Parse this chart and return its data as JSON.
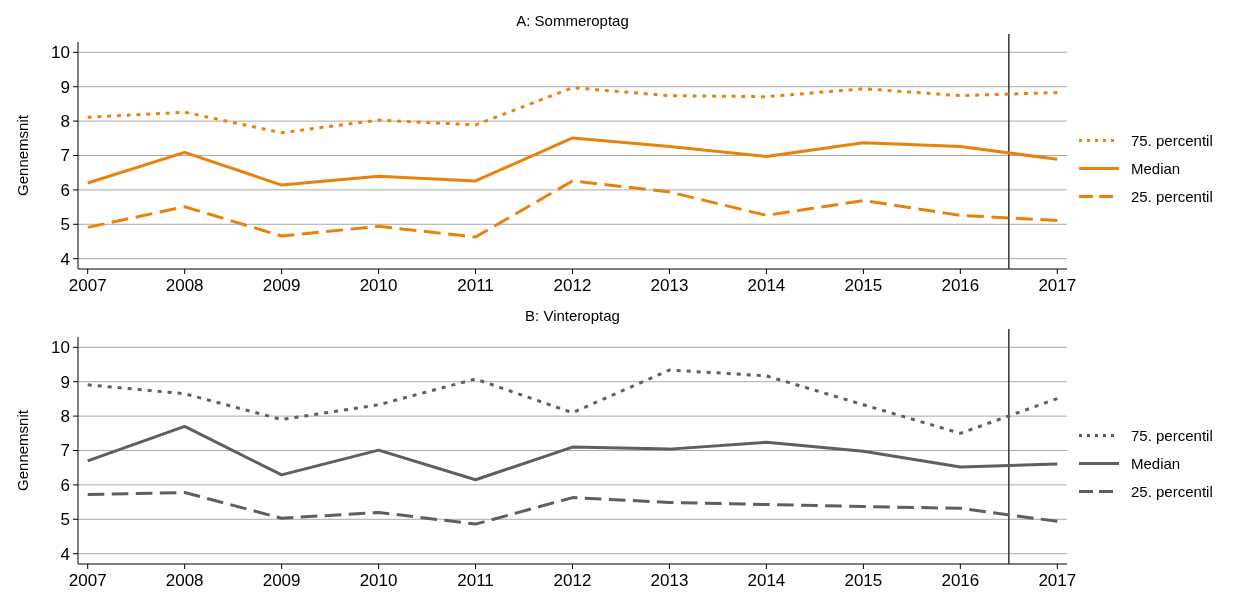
{
  "chart_data": [
    {
      "type": "line",
      "title": "A: Sommeroptag",
      "ylabel": "Gennemsnit",
      "x": [
        2007,
        2008,
        2009,
        2010,
        2011,
        2012,
        2013,
        2014,
        2015,
        2016,
        2017
      ],
      "xlim": [
        2006.9,
        2017.1
      ],
      "xticks": [
        2007,
        2008,
        2009,
        2010,
        2011,
        2012,
        2013,
        2014,
        2015,
        2016,
        2017
      ],
      "ylim": [
        3.7,
        10.3
      ],
      "yticks": [
        4,
        5,
        6,
        7,
        8,
        9,
        10
      ],
      "grid": "y",
      "legend": "right",
      "series": [
        {
          "name": "75. percentil",
          "color": "#e8820c",
          "line_style": "dotted",
          "values": [
            8.11,
            8.26,
            7.66,
            8.03,
            7.89,
            8.97,
            8.74,
            8.71,
            8.94,
            8.74,
            8.83
          ]
        },
        {
          "name": "Median",
          "color": "#e8820c",
          "line_style": "solid",
          "values": [
            6.2,
            7.09,
            6.14,
            6.4,
            6.26,
            7.51,
            7.26,
            6.97,
            7.37,
            7.26,
            6.89
          ]
        },
        {
          "name": "25. percentil",
          "color": "#e8820c",
          "line_style": "dashed",
          "values": [
            4.91,
            5.51,
            4.66,
            4.94,
            4.63,
            6.26,
            5.94,
            5.26,
            5.69,
            5.26,
            5.11
          ]
        }
      ],
      "ref_lines": [
        {
          "axis": "x",
          "value": 2016.5,
          "color": "#333333"
        }
      ]
    },
    {
      "type": "line",
      "title": "B: Vinteroptag",
      "ylabel": "Gennemsnit",
      "x": [
        2007,
        2008,
        2009,
        2010,
        2011,
        2012,
        2013,
        2014,
        2015,
        2016,
        2017
      ],
      "xlim": [
        2006.9,
        2017.1
      ],
      "xticks": [
        2007,
        2008,
        2009,
        2010,
        2011,
        2012,
        2013,
        2014,
        2015,
        2016,
        2017
      ],
      "ylim": [
        3.7,
        10.3
      ],
      "yticks": [
        4,
        5,
        6,
        7,
        8,
        9,
        10
      ],
      "grid": "y",
      "legend": "right",
      "series": [
        {
          "name": "75. percentil",
          "color": "#5f5f5f",
          "line_style": "dotted",
          "values": [
            8.91,
            8.65,
            7.9,
            8.33,
            9.08,
            8.1,
            9.34,
            9.17,
            8.33,
            7.5,
            8.51
          ]
        },
        {
          "name": "Median",
          "color": "#5f5f5f",
          "line_style": "solid",
          "values": [
            6.7,
            7.7,
            6.29,
            7.01,
            6.15,
            7.1,
            7.04,
            7.24,
            6.98,
            6.52,
            6.61
          ]
        },
        {
          "name": "25. percentil",
          "color": "#5f5f5f",
          "line_style": "dashed",
          "values": [
            5.72,
            5.78,
            5.03,
            5.2,
            4.86,
            5.63,
            5.49,
            5.43,
            5.37,
            5.32,
            4.94
          ]
        }
      ],
      "ref_lines": [
        {
          "axis": "x",
          "value": 2016.5,
          "color": "#333333"
        }
      ]
    }
  ]
}
